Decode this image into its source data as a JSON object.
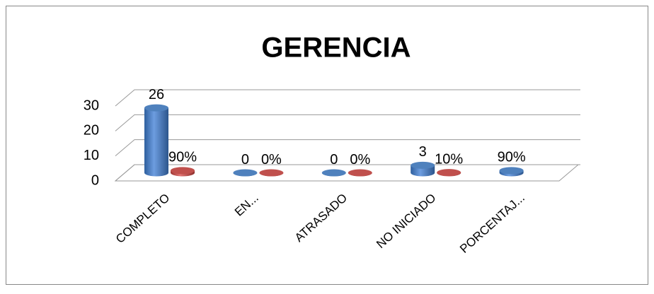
{
  "chart_data": {
    "type": "bar3d",
    "title": "GERENCIA",
    "categories": [
      "COMPLETO",
      "EN...",
      "ATRASADO",
      "NO INICIADO",
      "PORCENTAJ..."
    ],
    "series": [
      {
        "color": "#4f81bd",
        "values": [
          26,
          0,
          0,
          3,
          0.9
        ],
        "value_labels": [
          "26",
          "0",
          "0",
          "3",
          "90%"
        ]
      },
      {
        "color": "#c0504d",
        "values": [
          0.9,
          0,
          0,
          0.1,
          null
        ],
        "value_labels": [
          "90%",
          "0%",
          "0%",
          "10%",
          null
        ]
      }
    ],
    "ylim": [
      0,
      30
    ],
    "yticks": [
      0,
      10,
      20,
      30
    ],
    "grid": true
  }
}
